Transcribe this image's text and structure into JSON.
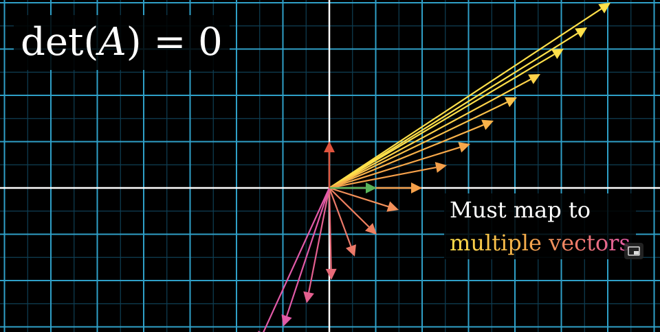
{
  "equation": {
    "prefix": "det(",
    "matrix": "A",
    "suffix": ") = 0"
  },
  "caption": {
    "line1": "Must map to",
    "line2": "multiple vectors"
  },
  "controls": {
    "pip_icon": "picture-in-picture-icon"
  },
  "colors": {
    "background": "#000000",
    "grid_major": "#2fa0c8",
    "grid_minor": "#0f3f55",
    "axes": "#ffffff",
    "basis_i": "#5ab55a",
    "basis_j": "#e0533d",
    "yellow": "#ffe04a",
    "orange": "#f5a04a",
    "salmon": "#ec7a6a",
    "pink": "#e25aa8"
  }
}
